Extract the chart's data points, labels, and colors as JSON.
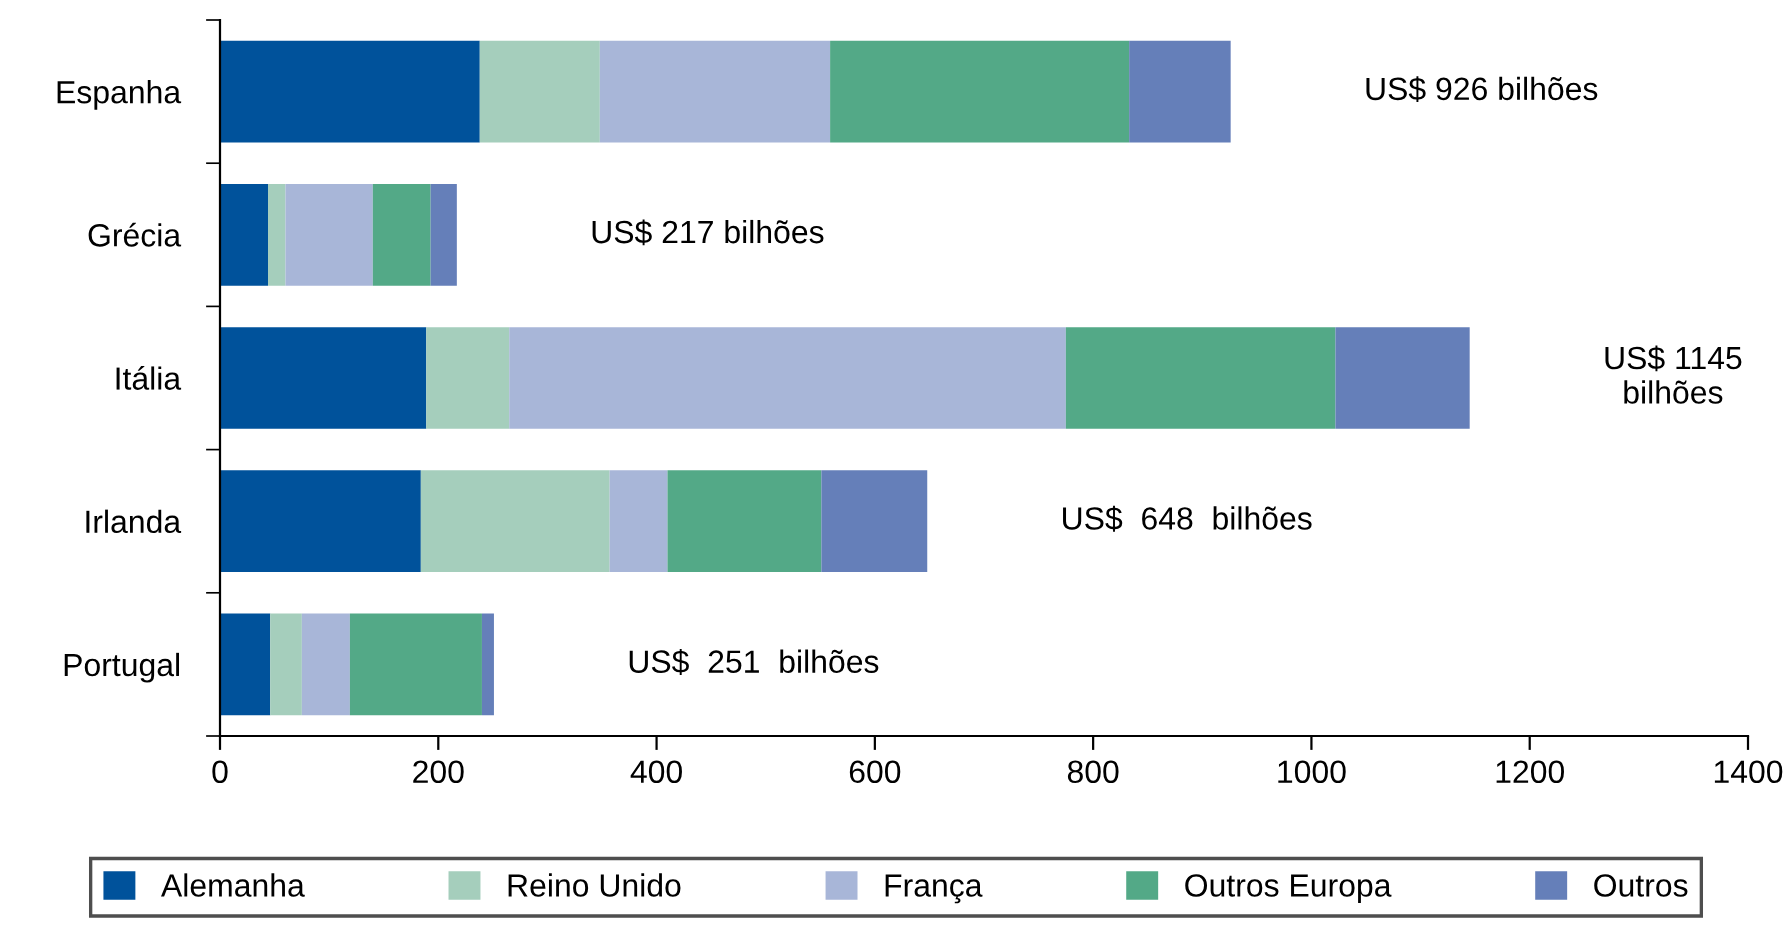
{
  "chart_data": {
    "type": "bar",
    "orientation": "horizontal",
    "stacked": true,
    "categories": [
      "Espanha",
      "Grécia",
      "Itália",
      "Irlanda",
      "Portugal"
    ],
    "series": [
      {
        "name": "Alemanha",
        "color": "#00529b",
        "values": [
          238,
          44,
          189,
          184,
          46
        ]
      },
      {
        "name": "Reino Unido",
        "color": "#a5cebc",
        "values": [
          110,
          16,
          76,
          173,
          29
        ]
      },
      {
        "name": "França",
        "color": "#a8b6d8",
        "values": [
          211,
          80,
          510,
          53,
          44
        ]
      },
      {
        "name": "Outros Europa",
        "color": "#53a987",
        "values": [
          274,
          53,
          247,
          141,
          121
        ]
      },
      {
        "name": "Outros",
        "color": "#657fb9",
        "values": [
          93,
          24,
          123,
          97,
          11
        ]
      }
    ],
    "xlim": [
      0,
      1400
    ],
    "xticks": [
      0,
      200,
      400,
      600,
      800,
      1000,
      1200,
      1400
    ],
    "grid": false,
    "legend": "bottom",
    "annotations": [
      "US$ 926 bilhões",
      "US$ 217 bilhões",
      "US$ 1145\nbilhões",
      "US$  648  bilhões",
      "US$  251  bilhões"
    ]
  }
}
